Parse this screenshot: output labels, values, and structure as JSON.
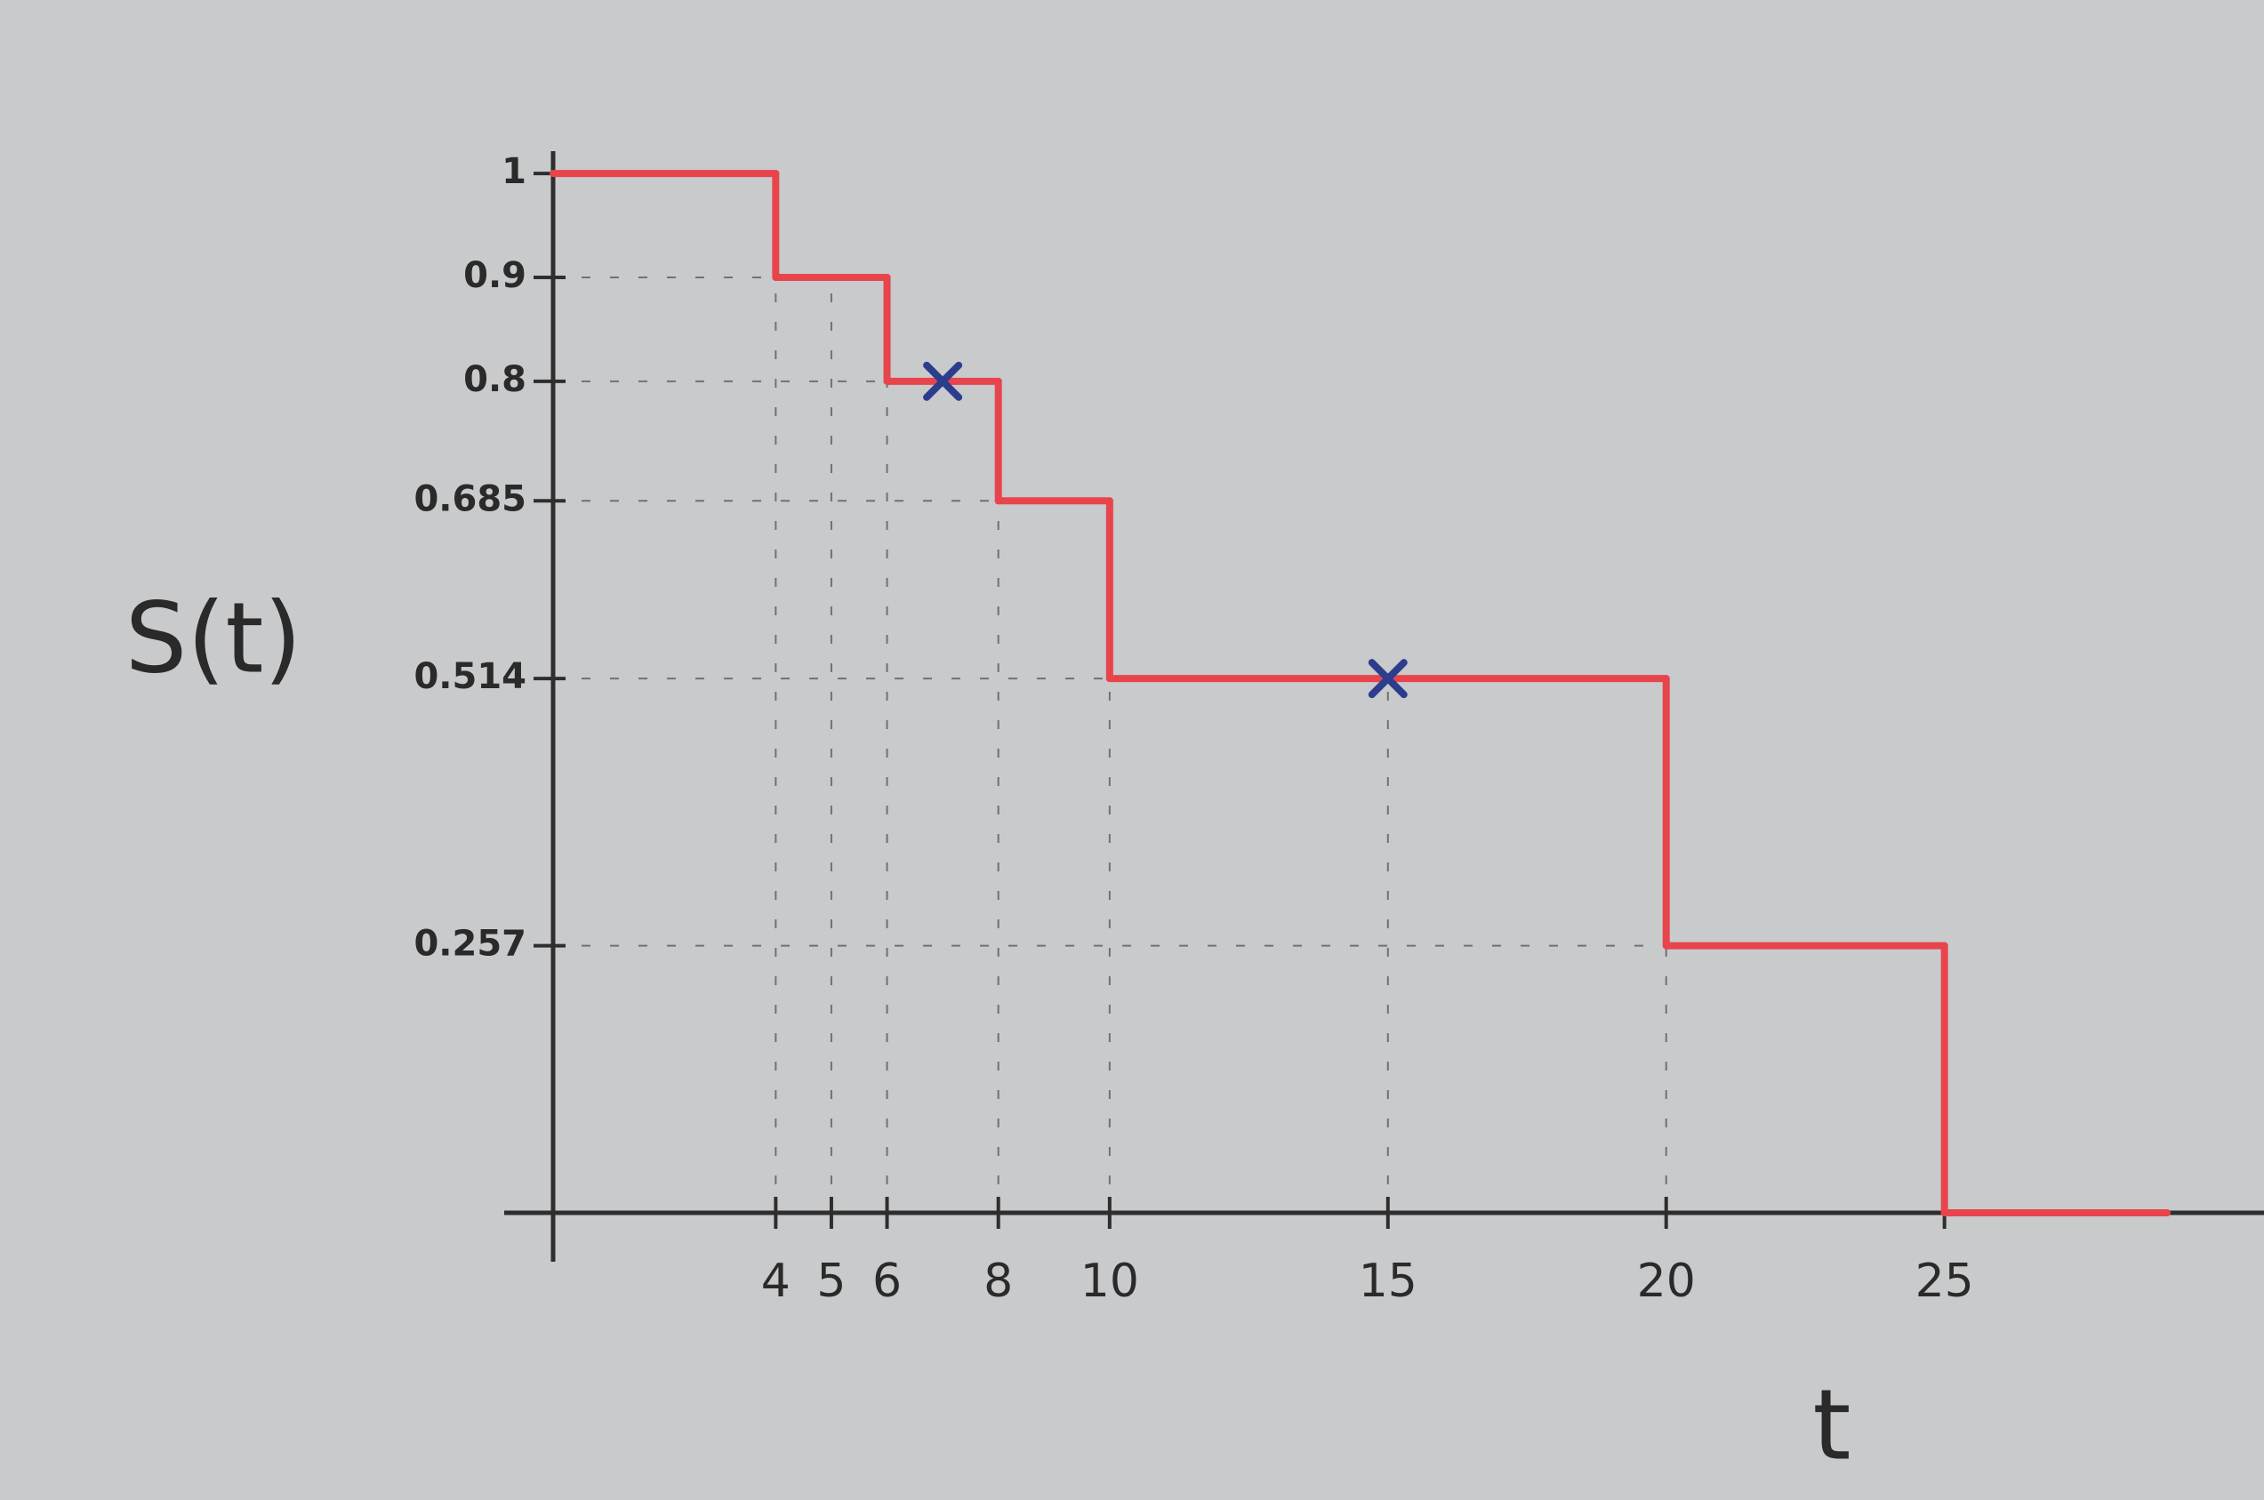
{
  "chart_data": {
    "type": "step",
    "ylabel": "S(t)",
    "xlabel": "t",
    "x": [
      0,
      4,
      6,
      8,
      10,
      20,
      25
    ],
    "values": [
      1,
      0.9,
      0.8,
      0.685,
      0.514,
      0.257,
      0
    ],
    "color": "#e8444c",
    "censored": {
      "x": [
        7,
        15
      ],
      "values": [
        0.8,
        0.514
      ],
      "color": "#2b3d8c"
    },
    "xlim": [
      0,
      29
    ],
    "ylim": [
      0,
      1.03
    ],
    "xticks": [
      4,
      5,
      6,
      8,
      10,
      15,
      20,
      25
    ],
    "yticks": [
      1,
      0.9,
      0.8,
      0.685,
      0.514,
      0.257
    ],
    "grid": true
  }
}
